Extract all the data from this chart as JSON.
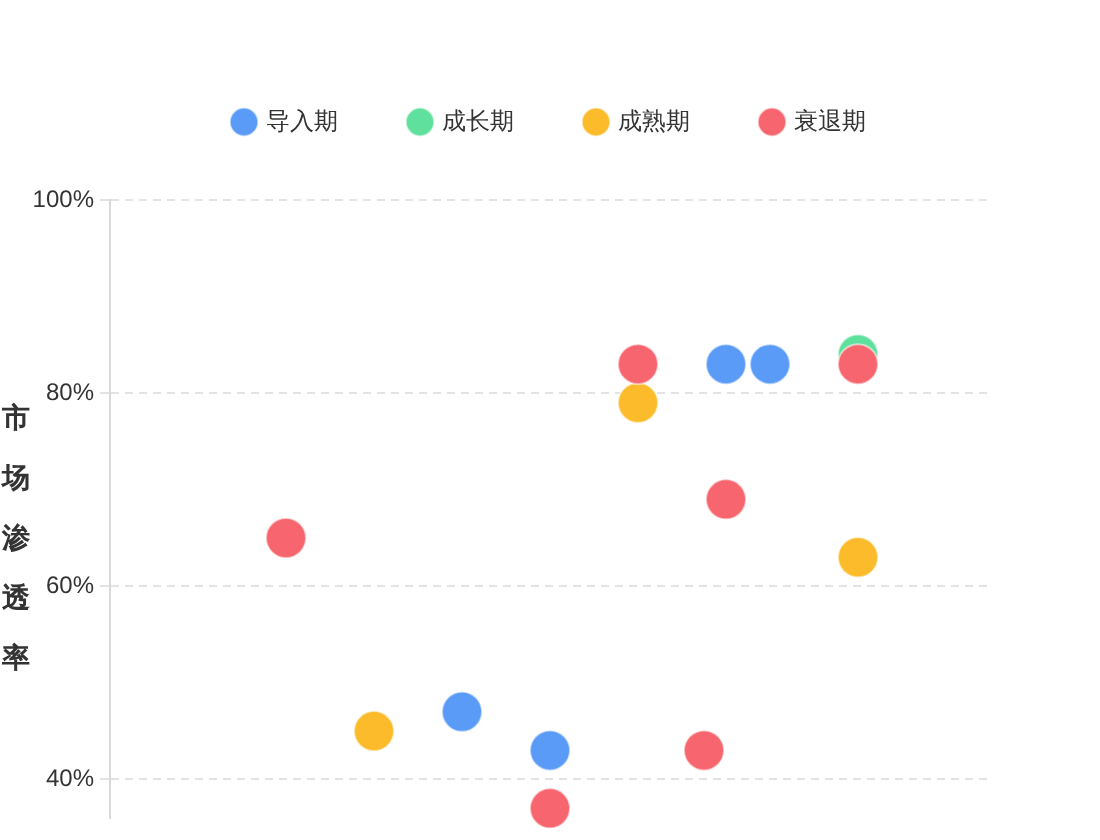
{
  "chart_data": {
    "type": "scatter",
    "ylabel": "市场渗透率",
    "categories": [
      null,
      null,
      null,
      null,
      null,
      null,
      null,
      null,
      null,
      null,
      null,
      null,
      null,
      null,
      null,
      null,
      null,
      null,
      null,
      null,
      null,
      null,
      null,
      null,
      null,
      null,
      null,
      null,
      null,
      null,
      null,
      null,
      null,
      null,
      null,
      null,
      null,
      null,
      null,
      null,
      null
    ],
    "series": [
      {
        "name": "导入期",
        "color": "#5b9bf8",
        "values": [
          null,
          null,
          null,
          null,
          null,
          null,
          null,
          null,
          null,
          null,
          null,
          null,
          null,
          null,
          null,
          null,
          47,
          null,
          null,
          null,
          43,
          null,
          null,
          null,
          null,
          null,
          null,
          null,
          83,
          null,
          83,
          null,
          null,
          null,
          null,
          null,
          null,
          null,
          null,
          null,
          null
        ]
      },
      {
        "name": "成长期",
        "color": "#5fe09c",
        "values": [
          null,
          null,
          null,
          null,
          null,
          null,
          null,
          null,
          null,
          null,
          null,
          null,
          null,
          null,
          null,
          null,
          null,
          null,
          null,
          null,
          null,
          null,
          null,
          null,
          null,
          null,
          null,
          null,
          null,
          null,
          null,
          null,
          null,
          null,
          84,
          null,
          null,
          null,
          null,
          null,
          null
        ]
      },
      {
        "name": "成熟期",
        "color": "#fbbb2a",
        "values": [
          null,
          null,
          null,
          null,
          null,
          null,
          null,
          null,
          null,
          null,
          null,
          null,
          45,
          null,
          null,
          null,
          null,
          null,
          null,
          null,
          null,
          null,
          null,
          null,
          79,
          null,
          null,
          null,
          null,
          null,
          null,
          null,
          null,
          null,
          63,
          null,
          null,
          null,
          null,
          null,
          null
        ]
      },
      {
        "name": "衰退期",
        "color": "#f7666e",
        "values": [
          null,
          null,
          null,
          null,
          null,
          null,
          null,
          null,
          65,
          null,
          null,
          null,
          null,
          null,
          null,
          null,
          null,
          null,
          null,
          null,
          37,
          null,
          null,
          null,
          83,
          null,
          null,
          43,
          69,
          null,
          null,
          null,
          null,
          null,
          83,
          null,
          null,
          null,
          null,
          null,
          null
        ]
      }
    ],
    "ylim": [
      36,
      100
    ],
    "yticks": [
      {
        "value": 40,
        "label": "40%"
      },
      {
        "value": 60,
        "label": "60%"
      },
      {
        "value": 80,
        "label": "80%"
      },
      {
        "value": 100,
        "label": "100%"
      }
    ],
    "grid": "y",
    "legend": "top",
    "marker": "circle",
    "tick_labels": "y"
  }
}
